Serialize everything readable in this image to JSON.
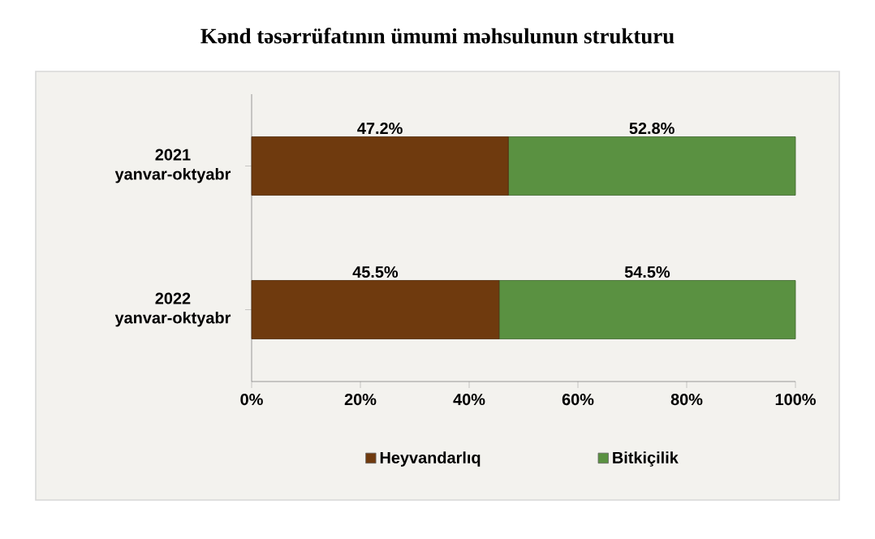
{
  "chart_data": {
    "type": "bar",
    "orientation": "horizontal",
    "stacked": true,
    "title": "Kənd təsərrüfatının ümumi məhsulunun strukturu",
    "categories": [
      "2021 yanvar-oktyabr",
      "2022 yanvar-oktyabr"
    ],
    "series": [
      {
        "name": "Heyvandarlıq",
        "color": "#6f3a0e",
        "values": [
          47.2,
          45.5
        ],
        "value_labels": [
          "47.2%",
          "45.5%"
        ]
      },
      {
        "name": "Bitkiçilik",
        "color": "#5a9141",
        "values": [
          52.8,
          54.5
        ],
        "value_labels": [
          "52.8%",
          "54.5%"
        ]
      }
    ],
    "xlim": [
      0,
      100
    ],
    "xticks": [
      {
        "value": 0,
        "label": "0%"
      },
      {
        "value": 20,
        "label": "20%"
      },
      {
        "value": 40,
        "label": "40%"
      },
      {
        "value": 60,
        "label": "60%"
      },
      {
        "value": 80,
        "label": "80%"
      },
      {
        "value": 100,
        "label": "100%"
      }
    ],
    "legend": "bottom"
  }
}
